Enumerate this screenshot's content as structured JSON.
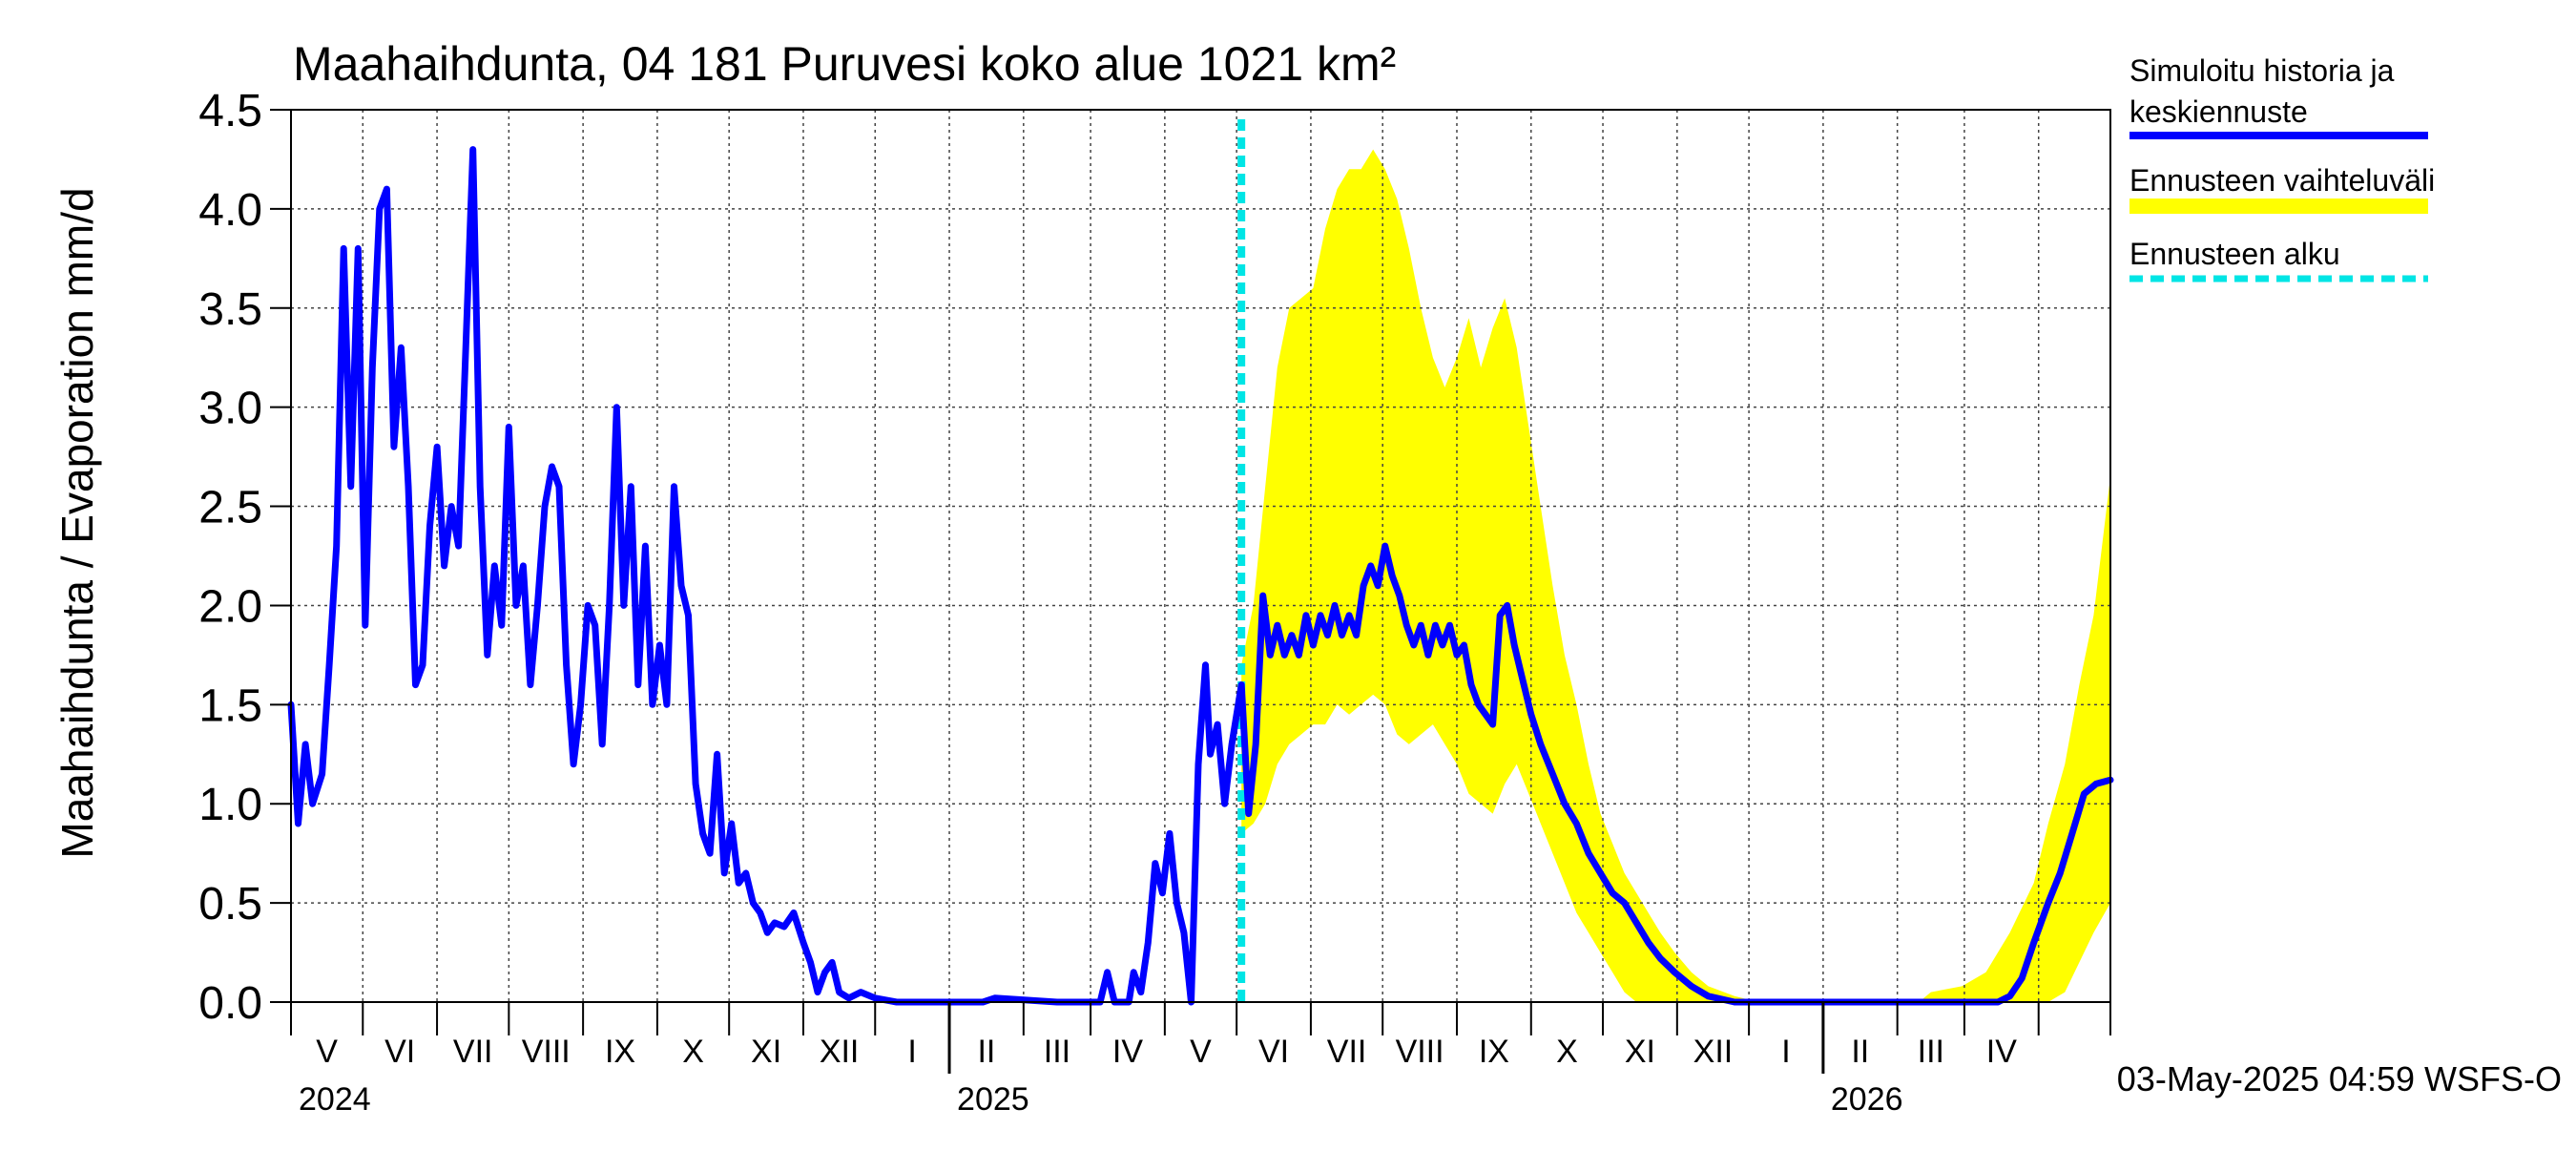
{
  "chart_data": {
    "type": "line",
    "title": "Maahaihdunta, 04 181 Puruvesi koko alue 1021 km²",
    "ylabel": "Maahaihdunta / Evaporation   mm/d",
    "xlabel": "",
    "ylim": [
      0.0,
      4.5
    ],
    "yticks": [
      "0.0",
      "0.5",
      "1.0",
      "1.5",
      "2.0",
      "2.5",
      "3.0",
      "3.5",
      "4.0",
      "4.5"
    ],
    "xlim": [
      "2024-04-01",
      "2026-05-01"
    ],
    "grid": true,
    "legend_position": "top-right, outside plot",
    "month_labels": [
      "V",
      "VI",
      "VII",
      "VIII",
      "IX",
      "X",
      "XI",
      "XII",
      "I",
      "II",
      "III",
      "IV",
      "V",
      "VI",
      "VII",
      "VIII",
      "IX",
      "X",
      "XI",
      "XII",
      "I",
      "II",
      "III",
      "IV"
    ],
    "year_labels": [
      "2024",
      "2025",
      "2026"
    ],
    "forecast_start": "2025-05-03",
    "series": [
      {
        "name": "Simuloitu historia ja keskiennuste",
        "color": "#0000ff",
        "points": [
          [
            "2024-04-01",
            1.5
          ],
          [
            "2024-04-04",
            0.9
          ],
          [
            "2024-04-07",
            1.3
          ],
          [
            "2024-04-10",
            1.0
          ],
          [
            "2024-04-14",
            1.15
          ],
          [
            "2024-04-17",
            1.7
          ],
          [
            "2024-04-20",
            2.3
          ],
          [
            "2024-04-23",
            3.8
          ],
          [
            "2024-04-26",
            2.6
          ],
          [
            "2024-04-29",
            3.8
          ],
          [
            "2024-05-02",
            1.9
          ],
          [
            "2024-05-05",
            3.2
          ],
          [
            "2024-05-08",
            4.0
          ],
          [
            "2024-05-11",
            4.1
          ],
          [
            "2024-05-14",
            2.8
          ],
          [
            "2024-05-17",
            3.3
          ],
          [
            "2024-05-20",
            2.6
          ],
          [
            "2024-05-23",
            1.6
          ],
          [
            "2024-05-26",
            1.7
          ],
          [
            "2024-05-29",
            2.4
          ],
          [
            "2024-06-01",
            2.8
          ],
          [
            "2024-06-04",
            2.2
          ],
          [
            "2024-06-07",
            2.5
          ],
          [
            "2024-06-10",
            2.3
          ],
          [
            "2024-06-13",
            3.3
          ],
          [
            "2024-06-16",
            4.3
          ],
          [
            "2024-06-19",
            2.6
          ],
          [
            "2024-06-22",
            1.75
          ],
          [
            "2024-06-25",
            2.2
          ],
          [
            "2024-06-28",
            1.9
          ],
          [
            "2024-07-01",
            2.9
          ],
          [
            "2024-07-04",
            2.0
          ],
          [
            "2024-07-07",
            2.2
          ],
          [
            "2024-07-10",
            1.6
          ],
          [
            "2024-07-13",
            2.0
          ],
          [
            "2024-07-16",
            2.5
          ],
          [
            "2024-07-19",
            2.7
          ],
          [
            "2024-07-22",
            2.6
          ],
          [
            "2024-07-25",
            1.7
          ],
          [
            "2024-07-28",
            1.2
          ],
          [
            "2024-07-31",
            1.5
          ],
          [
            "2024-08-03",
            2.0
          ],
          [
            "2024-08-06",
            1.9
          ],
          [
            "2024-08-09",
            1.3
          ],
          [
            "2024-08-12",
            2.0
          ],
          [
            "2024-08-15",
            3.0
          ],
          [
            "2024-08-18",
            2.0
          ],
          [
            "2024-08-21",
            2.6
          ],
          [
            "2024-08-24",
            1.6
          ],
          [
            "2024-08-27",
            2.3
          ],
          [
            "2024-08-30",
            1.5
          ],
          [
            "2024-09-02",
            1.8
          ],
          [
            "2024-09-05",
            1.5
          ],
          [
            "2024-09-08",
            2.6
          ],
          [
            "2024-09-11",
            2.1
          ],
          [
            "2024-09-14",
            1.95
          ],
          [
            "2024-09-17",
            1.1
          ],
          [
            "2024-09-20",
            0.85
          ],
          [
            "2024-09-23",
            0.75
          ],
          [
            "2024-09-26",
            1.25
          ],
          [
            "2024-09-29",
            0.65
          ],
          [
            "2024-10-02",
            0.9
          ],
          [
            "2024-10-05",
            0.6
          ],
          [
            "2024-10-08",
            0.65
          ],
          [
            "2024-10-11",
            0.5
          ],
          [
            "2024-10-14",
            0.45
          ],
          [
            "2024-10-17",
            0.35
          ],
          [
            "2024-10-20",
            0.4
          ],
          [
            "2024-10-24",
            0.38
          ],
          [
            "2024-10-28",
            0.45
          ],
          [
            "2024-11-01",
            0.3
          ],
          [
            "2024-11-04",
            0.2
          ],
          [
            "2024-11-07",
            0.05
          ],
          [
            "2024-11-10",
            0.15
          ],
          [
            "2024-11-13",
            0.2
          ],
          [
            "2024-11-16",
            0.05
          ],
          [
            "2024-11-20",
            0.02
          ],
          [
            "2024-11-25",
            0.05
          ],
          [
            "2024-12-01",
            0.02
          ],
          [
            "2024-12-10",
            0.0
          ],
          [
            "2025-01-15",
            0.0
          ],
          [
            "2025-01-20",
            0.02
          ],
          [
            "2025-02-15",
            0.0
          ],
          [
            "2025-03-05",
            0.0
          ],
          [
            "2025-03-08",
            0.15
          ],
          [
            "2025-03-11",
            0.0
          ],
          [
            "2025-03-17",
            0.0
          ],
          [
            "2025-03-19",
            0.15
          ],
          [
            "2025-03-22",
            0.05
          ],
          [
            "2025-03-25",
            0.3
          ],
          [
            "2025-03-28",
            0.7
          ],
          [
            "2025-03-31",
            0.55
          ],
          [
            "2025-04-03",
            0.85
          ],
          [
            "2025-04-06",
            0.5
          ],
          [
            "2025-04-09",
            0.35
          ],
          [
            "2025-04-12",
            0.0
          ],
          [
            "2025-04-15",
            1.2
          ],
          [
            "2025-04-18",
            1.7
          ],
          [
            "2025-04-20",
            1.25
          ],
          [
            "2025-04-23",
            1.4
          ],
          [
            "2025-04-26",
            1.0
          ],
          [
            "2025-04-29",
            1.3
          ],
          [
            "2025-05-03",
            1.6
          ],
          [
            "2025-05-06",
            0.95
          ],
          [
            "2025-05-09",
            1.3
          ],
          [
            "2025-05-12",
            2.05
          ],
          [
            "2025-05-15",
            1.75
          ],
          [
            "2025-05-18",
            1.9
          ],
          [
            "2025-05-21",
            1.75
          ],
          [
            "2025-05-24",
            1.85
          ],
          [
            "2025-05-27",
            1.75
          ],
          [
            "2025-05-30",
            1.95
          ],
          [
            "2025-06-02",
            1.8
          ],
          [
            "2025-06-05",
            1.95
          ],
          [
            "2025-06-08",
            1.85
          ],
          [
            "2025-06-11",
            2.0
          ],
          [
            "2025-06-14",
            1.85
          ],
          [
            "2025-06-17",
            1.95
          ],
          [
            "2025-06-20",
            1.85
          ],
          [
            "2025-06-23",
            2.1
          ],
          [
            "2025-06-26",
            2.2
          ],
          [
            "2025-06-29",
            2.1
          ],
          [
            "2025-07-02",
            2.3
          ],
          [
            "2025-07-05",
            2.15
          ],
          [
            "2025-07-08",
            2.05
          ],
          [
            "2025-07-11",
            1.9
          ],
          [
            "2025-07-14",
            1.8
          ],
          [
            "2025-07-17",
            1.9
          ],
          [
            "2025-07-20",
            1.75
          ],
          [
            "2025-07-23",
            1.9
          ],
          [
            "2025-07-26",
            1.8
          ],
          [
            "2025-07-29",
            1.9
          ],
          [
            "2025-08-01",
            1.75
          ],
          [
            "2025-08-04",
            1.8
          ],
          [
            "2025-08-07",
            1.6
          ],
          [
            "2025-08-10",
            1.5
          ],
          [
            "2025-08-13",
            1.45
          ],
          [
            "2025-08-16",
            1.4
          ],
          [
            "2025-08-19",
            1.95
          ],
          [
            "2025-08-22",
            2.0
          ],
          [
            "2025-08-25",
            1.8
          ],
          [
            "2025-08-28",
            1.65
          ],
          [
            "2025-09-01",
            1.45
          ],
          [
            "2025-09-05",
            1.3
          ],
          [
            "2025-09-10",
            1.15
          ],
          [
            "2025-09-15",
            1.0
          ],
          [
            "2025-09-20",
            0.9
          ],
          [
            "2025-09-25",
            0.75
          ],
          [
            "2025-09-30",
            0.65
          ],
          [
            "2025-10-05",
            0.55
          ],
          [
            "2025-10-10",
            0.5
          ],
          [
            "2025-10-15",
            0.4
          ],
          [
            "2025-10-20",
            0.3
          ],
          [
            "2025-10-25",
            0.22
          ],
          [
            "2025-10-31",
            0.15
          ],
          [
            "2025-11-07",
            0.08
          ],
          [
            "2025-11-14",
            0.03
          ],
          [
            "2025-11-25",
            0.0
          ],
          [
            "2026-03-15",
            0.0
          ],
          [
            "2026-03-20",
            0.03
          ],
          [
            "2026-03-25",
            0.12
          ],
          [
            "2026-03-30",
            0.3
          ],
          [
            "2026-04-05",
            0.5
          ],
          [
            "2026-04-10",
            0.65
          ],
          [
            "2026-04-15",
            0.85
          ],
          [
            "2026-04-20",
            1.05
          ],
          [
            "2026-04-25",
            1.1
          ],
          [
            "2026-05-01",
            1.12
          ]
        ]
      },
      {
        "name": "Ennusteen vaihteluväli",
        "color": "#ffff00",
        "type": "band",
        "points": [
          [
            "2025-05-03",
            0.85,
            1.7
          ],
          [
            "2025-05-08",
            0.9,
            2.0
          ],
          [
            "2025-05-13",
            1.0,
            2.6
          ],
          [
            "2025-05-18",
            1.2,
            3.2
          ],
          [
            "2025-05-23",
            1.3,
            3.5
          ],
          [
            "2025-05-28",
            1.35,
            3.55
          ],
          [
            "2025-06-02",
            1.4,
            3.6
          ],
          [
            "2025-06-07",
            1.4,
            3.9
          ],
          [
            "2025-06-12",
            1.5,
            4.1
          ],
          [
            "2025-06-17",
            1.45,
            4.2
          ],
          [
            "2025-06-22",
            1.5,
            4.2
          ],
          [
            "2025-06-27",
            1.55,
            4.3
          ],
          [
            "2025-07-02",
            1.5,
            4.2
          ],
          [
            "2025-07-07",
            1.35,
            4.05
          ],
          [
            "2025-07-12",
            1.3,
            3.8
          ],
          [
            "2025-07-17",
            1.35,
            3.5
          ],
          [
            "2025-07-22",
            1.4,
            3.25
          ],
          [
            "2025-07-27",
            1.3,
            3.1
          ],
          [
            "2025-08-01",
            1.2,
            3.25
          ],
          [
            "2025-08-06",
            1.05,
            3.45
          ],
          [
            "2025-08-11",
            1.0,
            3.2
          ],
          [
            "2025-08-16",
            0.95,
            3.4
          ],
          [
            "2025-08-21",
            1.1,
            3.55
          ],
          [
            "2025-08-26",
            1.2,
            3.3
          ],
          [
            "2025-08-31",
            1.05,
            2.9
          ],
          [
            "2025-09-05",
            0.9,
            2.5
          ],
          [
            "2025-09-10",
            0.75,
            2.1
          ],
          [
            "2025-09-15",
            0.6,
            1.75
          ],
          [
            "2025-09-20",
            0.45,
            1.5
          ],
          [
            "2025-09-25",
            0.35,
            1.2
          ],
          [
            "2025-09-30",
            0.25,
            0.95
          ],
          [
            "2025-10-05",
            0.15,
            0.8
          ],
          [
            "2025-10-10",
            0.05,
            0.65
          ],
          [
            "2025-10-15",
            0.0,
            0.55
          ],
          [
            "2025-10-20",
            0.0,
            0.45
          ],
          [
            "2025-10-25",
            0.0,
            0.35
          ],
          [
            "2025-10-31",
            0.0,
            0.25
          ],
          [
            "2025-11-07",
            0.0,
            0.15
          ],
          [
            "2025-11-14",
            0.0,
            0.08
          ],
          [
            "2025-11-25",
            0.0,
            0.03
          ],
          [
            "2025-12-05",
            0.0,
            0.0
          ],
          [
            "2026-02-10",
            0.0,
            0.0
          ],
          [
            "2026-02-15",
            0.0,
            0.05
          ],
          [
            "2026-02-28",
            0.0,
            0.08
          ],
          [
            "2026-03-10",
            0.0,
            0.15
          ],
          [
            "2026-03-20",
            0.0,
            0.35
          ],
          [
            "2026-03-30",
            0.0,
            0.6
          ],
          [
            "2026-04-05",
            0.0,
            0.9
          ],
          [
            "2026-04-12",
            0.05,
            1.2
          ],
          [
            "2026-04-18",
            0.2,
            1.6
          ],
          [
            "2026-04-24",
            0.35,
            1.95
          ],
          [
            "2026-05-01",
            0.5,
            2.65
          ]
        ]
      },
      {
        "name": "Ennusteen alku",
        "color": "#00e5e5",
        "type": "vline",
        "x": "2025-05-03"
      }
    ]
  },
  "footer": {
    "timestamp": "03-May-2025 04:59 WSFS-O"
  }
}
